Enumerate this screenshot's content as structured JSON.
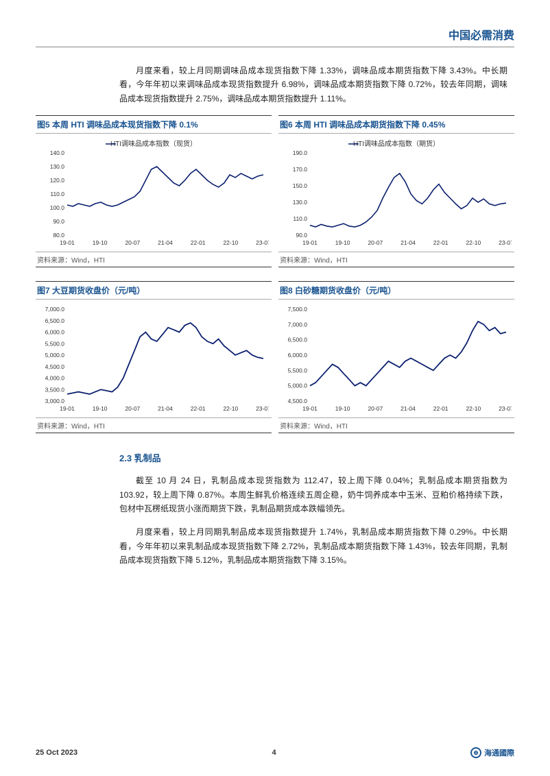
{
  "header": {
    "title": "中国必需消费"
  },
  "para1": "月度来看，较上月同期调味品成本现货指数下降 1.33%，调味品成本期货指数下降 3.43%。中长期看，今年年初以来调味品成本现货指数提升 6.98%，调味品成本期货指数下降 0.72%，较去年同期，调味品成本现货指数提升 2.75%，调味品成本期货指数提升 1.11%。",
  "section_heading": "2.3  乳制品",
  "para2": "截至 10 月 24 日，乳制品成本现货指数为 112.47，较上周下降 0.04%；乳制品成本期货指数为 103.92，较上周下降 0.87%。本周生鲜乳价格连续五周企稳，奶牛饲养成本中玉米、豆粕价格持续下跌，包材中瓦楞纸现货小涨而期货下跌，乳制品期货成本跌幅领先。",
  "para3": "月度来看，较上月同期乳制品成本现货指数提升 1.74%，乳制品成本期货指数下降 0.29%。中长期看，今年年初以来乳制品成本现货指数下降 2.72%，乳制品成本期货指数下降 1.43%，较去年同期，乳制品成本现货指数下降 5.12%，乳制品成本期货指数下降 3.15%。",
  "charts": {
    "c5": {
      "title": "图5  本周 HTI 调味品成本现货指数下降 0.1%",
      "legend": "HTI调味品成本指数（现货）",
      "source": "资料来源：Wind，HTI",
      "x_labels": [
        "19-01",
        "19-10",
        "20-07",
        "21-04",
        "22-01",
        "22-10",
        "23-07"
      ],
      "y_labels": [
        "80.0",
        "90.0",
        "100.0",
        "110.0",
        "120.0",
        "130.0",
        "140.0"
      ],
      "ylim": [
        80,
        140
      ],
      "data": [
        102,
        101,
        103,
        102,
        101,
        103,
        104,
        102,
        101,
        102,
        104,
        106,
        108,
        112,
        120,
        128,
        130,
        126,
        122,
        118,
        116,
        120,
        125,
        128,
        124,
        120,
        117,
        115,
        118,
        124,
        122,
        125,
        123,
        121,
        123,
        124
      ],
      "color": "#0a1f6e",
      "line_width": 1.6
    },
    "c6": {
      "title": "图6  本周 HTI 调味品成本期货指数下降 0.45%",
      "legend": "HTI调味品成本指数（期货）",
      "source": "资料来源：Wind，HTI",
      "x_labels": [
        "19-01",
        "19-10",
        "20-07",
        "21-04",
        "22-01",
        "22-10",
        "23-07"
      ],
      "y_labels": [
        "90.0",
        "110.0",
        "130.0",
        "150.0",
        "170.0",
        "190.0"
      ],
      "ylim": [
        90,
        190
      ],
      "data": [
        102,
        100,
        103,
        101,
        100,
        102,
        104,
        101,
        100,
        102,
        106,
        112,
        120,
        135,
        148,
        160,
        165,
        155,
        140,
        132,
        128,
        135,
        145,
        152,
        142,
        135,
        128,
        122,
        126,
        135,
        130,
        134,
        128,
        126,
        128,
        129
      ],
      "color": "#0a1f6e",
      "line_width": 1.6
    },
    "c7": {
      "title": "图7  大豆期货收盘价（元/吨）",
      "legend": "",
      "source": "资料来源：Wind，HTI",
      "x_labels": [
        "19-01",
        "19-10",
        "20-07",
        "21-04",
        "22-01",
        "22-10",
        "23-07"
      ],
      "y_labels": [
        "3,000.0",
        "3,500.0",
        "4,000.0",
        "4,500.0",
        "5,000.0",
        "5,500.0",
        "6,000.0",
        "6,500.0",
        "7,000.0"
      ],
      "ylim": [
        3000,
        7000
      ],
      "data": [
        3300,
        3350,
        3400,
        3350,
        3300,
        3400,
        3500,
        3450,
        3400,
        3600,
        4000,
        4600,
        5200,
        5800,
        6000,
        5700,
        5600,
        5900,
        6200,
        6100,
        6000,
        6300,
        6400,
        6200,
        5800,
        5600,
        5500,
        5700,
        5400,
        5200,
        5000,
        5100,
        5200,
        5000,
        4900,
        4850
      ],
      "color": "#0a1f6e",
      "line_width": 1.8
    },
    "c8": {
      "title": "图8  白砂糖期货收盘价（元/吨）",
      "legend": "",
      "source": "资料来源：Wind，HTI",
      "x_labels": [
        "19-01",
        "19-10",
        "20-07",
        "21-04",
        "22-01",
        "22-10",
        "23-07"
      ],
      "y_labels": [
        "4,500.0",
        "5,000.0",
        "5,500.0",
        "6,000.0",
        "6,500.0",
        "7,000.0",
        "7,500.0"
      ],
      "ylim": [
        4500,
        7500
      ],
      "data": [
        5000,
        5100,
        5300,
        5500,
        5700,
        5600,
        5400,
        5200,
        5000,
        5100,
        5000,
        5200,
        5400,
        5600,
        5800,
        5700,
        5600,
        5800,
        5900,
        5800,
        5700,
        5600,
        5500,
        5700,
        5900,
        6000,
        5900,
        6100,
        6400,
        6800,
        7100,
        7000,
        6800,
        6900,
        6700,
        6750
      ],
      "color": "#0a1f6e",
      "line_width": 1.8
    }
  },
  "footer": {
    "date": "25 Oct 2023",
    "page": "4",
    "brand": "海通國際"
  }
}
